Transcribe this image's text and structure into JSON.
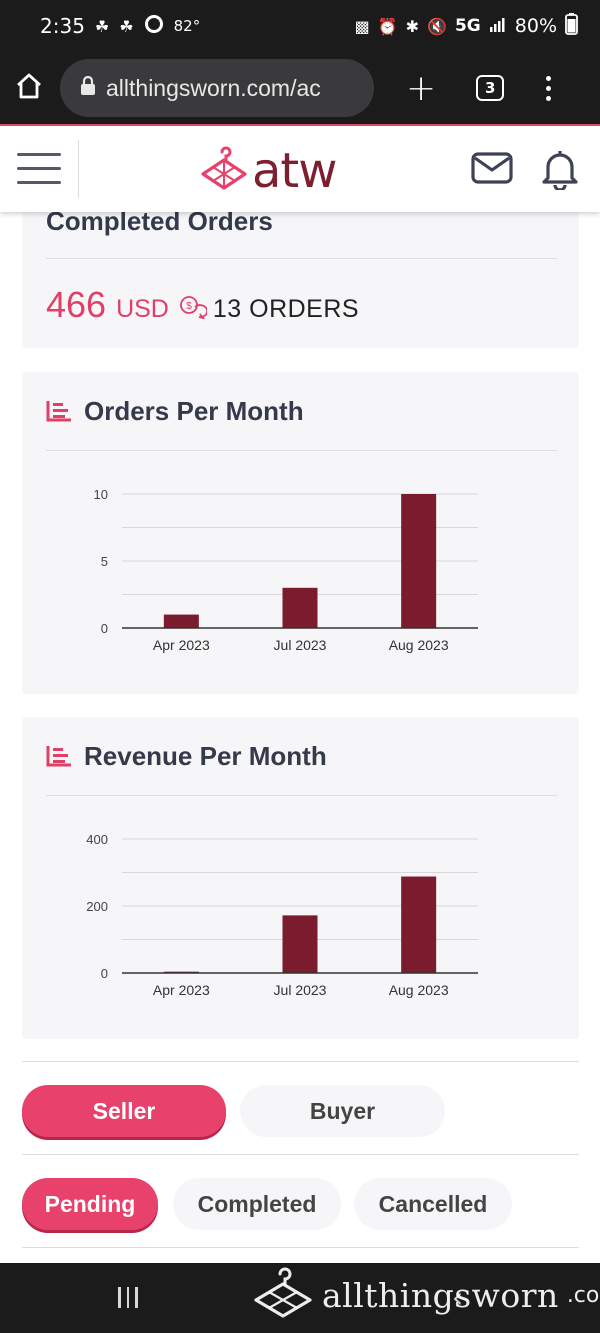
{
  "status_bar": {
    "time": "2:35",
    "temperature": "82°",
    "network": "5G",
    "battery": "80%"
  },
  "browser": {
    "url": "allthingsworn.com/ac",
    "tab_count": "3"
  },
  "header": {
    "logo_text": "atw",
    "brand_color": "#7c1f31"
  },
  "completed_orders": {
    "title": "Completed Orders",
    "amount": "466",
    "currency": "USD",
    "orders": "13 ORDERS",
    "accent_color": "#e04068"
  },
  "orders_chart": {
    "title": "Orders Per Month"
  },
  "revenue_chart": {
    "title": "Revenue Per Month"
  },
  "chart_data": [
    {
      "type": "bar",
      "title": "Orders Per Month",
      "categories": [
        "Apr 2023",
        "Jul 2023",
        "Aug 2023"
      ],
      "values": [
        1,
        3,
        10
      ],
      "yticks": [
        0,
        5,
        10
      ],
      "ylim": [
        0,
        10
      ],
      "bar_color": "#7a1c2e",
      "grid": true
    },
    {
      "type": "bar",
      "title": "Revenue Per Month",
      "categories": [
        "Apr 2023",
        "Jul 2023",
        "Aug 2023"
      ],
      "values": [
        4,
        172,
        288
      ],
      "yticks": [
        0,
        200,
        400
      ],
      "ylim": [
        0,
        400
      ],
      "bar_color": "#7a1c2e",
      "grid": true
    }
  ],
  "role_tabs": [
    {
      "label": "Seller",
      "active": true
    },
    {
      "label": "Buyer",
      "active": false
    }
  ],
  "status_tabs": [
    {
      "label": "Pending",
      "active": true
    },
    {
      "label": "Completed",
      "active": false
    },
    {
      "label": "Cancelled",
      "active": false
    }
  ],
  "watermark": {
    "text": "allthingsworn",
    "suffix": ".com"
  }
}
